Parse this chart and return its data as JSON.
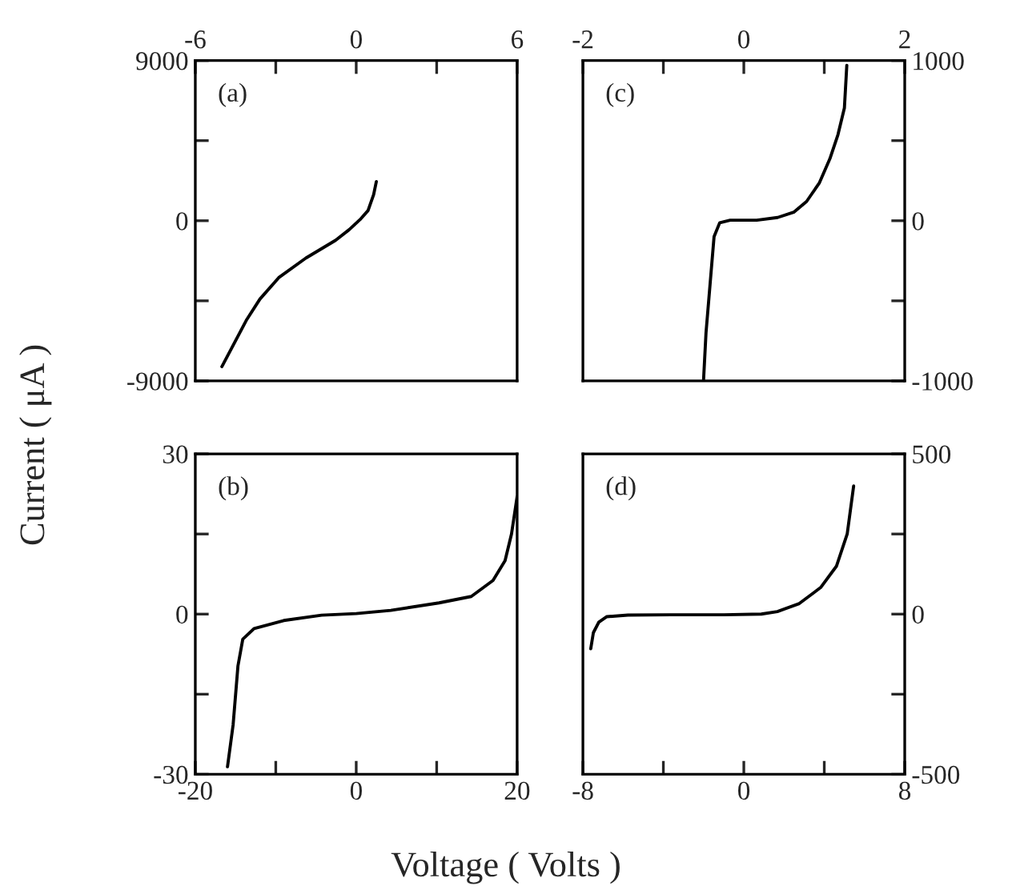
{
  "chart_data": [
    {
      "type": "line",
      "ylabel": "Current ( μA )",
      "annotations": [
        "(a)"
      ],
      "xlim": [
        -6,
        6
      ],
      "xticks": [
        -6,
        {
          "value": -3,
          "label": null
        },
        0,
        {
          "value": 3,
          "label": null
        },
        6
      ],
      "ylim": [
        -9000,
        9000
      ],
      "yticks": [
        -9000,
        {
          "value": -4500,
          "label": null
        },
        0,
        {
          "value": 4500,
          "label": null
        },
        9000
      ],
      "series": [
        {
          "color": "#000000",
          "x": [
            -5.01,
            -4.1,
            -3.59,
            -2.89,
            -1.88,
            -0.77,
            -0.26,
            0.14,
            0.44,
            0.65,
            0.75
          ],
          "values": [
            -8200,
            -5600,
            -4400,
            -3200,
            -2100,
            -1100,
            -500,
            60,
            570,
            1470,
            2200
          ]
        }
      ]
    },
    {
      "type": "line",
      "annotations": [
        "(c)"
      ],
      "xlim": [
        -2,
        2
      ],
      "xticks": [
        -2,
        {
          "value": -1,
          "label": null
        },
        0,
        {
          "value": 1,
          "label": null
        },
        2
      ],
      "ylim": [
        -1000,
        1000
      ],
      "yticks": [
        -1000,
        {
          "value": -500,
          "label": null
        },
        0,
        {
          "value": 500,
          "label": null
        },
        1000
      ],
      "series": [
        {
          "color": "#000000",
          "x": [
            -0.5,
            -0.47,
            -0.42,
            -0.37,
            -0.3,
            -0.17,
            0.16,
            0.42,
            0.62,
            0.78,
            0.94,
            1.07,
            1.17,
            1.25,
            1.28
          ],
          "values": [
            -990,
            -700,
            -400,
            -100,
            -13,
            3,
            3,
            20,
            53,
            120,
            237,
            387,
            537,
            703,
            970
          ]
        }
      ]
    },
    {
      "type": "line",
      "xlabel": "Voltage ( Volts )",
      "annotations": [
        "(b)"
      ],
      "xlim": [
        -20,
        20
      ],
      "xticks": [
        -20,
        {
          "value": -10,
          "label": null
        },
        0,
        {
          "value": 10,
          "label": null
        },
        20
      ],
      "ylim": [
        -30,
        30
      ],
      "yticks": [
        -30,
        {
          "value": -15,
          "label": null
        },
        0,
        {
          "value": 15,
          "label": null
        },
        30
      ],
      "series": [
        {
          "color": "#000000",
          "x": [
            -16.0,
            -15.3,
            -14.7,
            -14.1,
            -12.7,
            -9.0,
            -4.3,
            0,
            4.3,
            10.3,
            14.3,
            17.0,
            18.5,
            19.3,
            20
          ],
          "values": [
            -28.6,
            -20.7,
            -9.7,
            -4.7,
            -2.7,
            -1.2,
            -0.2,
            0.1,
            0.7,
            2.1,
            3.3,
            6.3,
            10,
            15,
            22
          ]
        }
      ]
    },
    {
      "type": "line",
      "annotations": [
        "(d)"
      ],
      "xlim": [
        -8,
        8
      ],
      "xticks": [
        -8,
        {
          "value": -4,
          "label": null
        },
        0,
        {
          "value": 4,
          "label": null
        },
        8
      ],
      "ylim": [
        -500,
        500
      ],
      "yticks": [
        -500,
        {
          "value": -250,
          "label": null
        },
        0,
        {
          "value": 250,
          "label": null
        },
        500
      ],
      "series": [
        {
          "color": "#000000",
          "x": [
            -7.61,
            -7.48,
            -7.21,
            -6.81,
            -5.76,
            -3.63,
            -0.99,
            0.87,
            1.67,
            2.76,
            3.82,
            4.61,
            5.14,
            5.46
          ],
          "values": [
            -108,
            -58,
            -25,
            -8,
            -3,
            -2,
            -2,
            0,
            8,
            33,
            83,
            150,
            250,
            400
          ]
        }
      ]
    }
  ]
}
